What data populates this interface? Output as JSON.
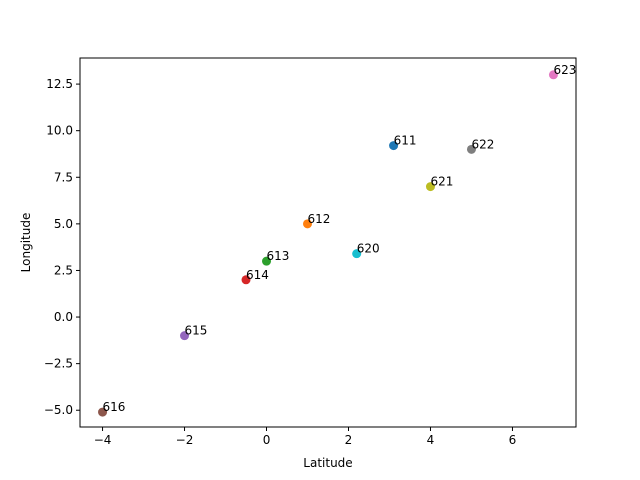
{
  "chart_data": {
    "type": "scatter",
    "title": "",
    "xlabel": "Latitude",
    "ylabel": "Longitude",
    "xlim": [
      -4.55,
      7.55
    ],
    "ylim": [
      -5.9,
      13.9
    ],
    "xticks": [
      -4,
      -2,
      0,
      2,
      4,
      6
    ],
    "yticks": [
      -5.0,
      -2.5,
      0.0,
      2.5,
      5.0,
      7.5,
      10.0,
      12.5
    ],
    "grid": false,
    "points": [
      {
        "label": "611",
        "x": 3.1,
        "y": 9.2,
        "color": "#1f77b4"
      },
      {
        "label": "612",
        "x": 1.0,
        "y": 5.0,
        "color": "#ff7f0e"
      },
      {
        "label": "613",
        "x": 0.0,
        "y": 3.0,
        "color": "#2ca02c"
      },
      {
        "label": "614",
        "x": -0.5,
        "y": 2.0,
        "color": "#d62728"
      },
      {
        "label": "615",
        "x": -2.0,
        "y": -1.0,
        "color": "#9467bd"
      },
      {
        "label": "616",
        "x": -4.0,
        "y": -5.1,
        "color": "#8c564b"
      },
      {
        "label": "623",
        "x": 7.0,
        "y": 13.0,
        "color": "#e377c2"
      },
      {
        "label": "622",
        "x": 5.0,
        "y": 9.0,
        "color": "#7f7f7f"
      },
      {
        "label": "621",
        "x": 4.0,
        "y": 7.0,
        "color": "#bcbd22"
      },
      {
        "label": "620",
        "x": 2.2,
        "y": 3.4,
        "color": "#17becf"
      }
    ]
  }
}
